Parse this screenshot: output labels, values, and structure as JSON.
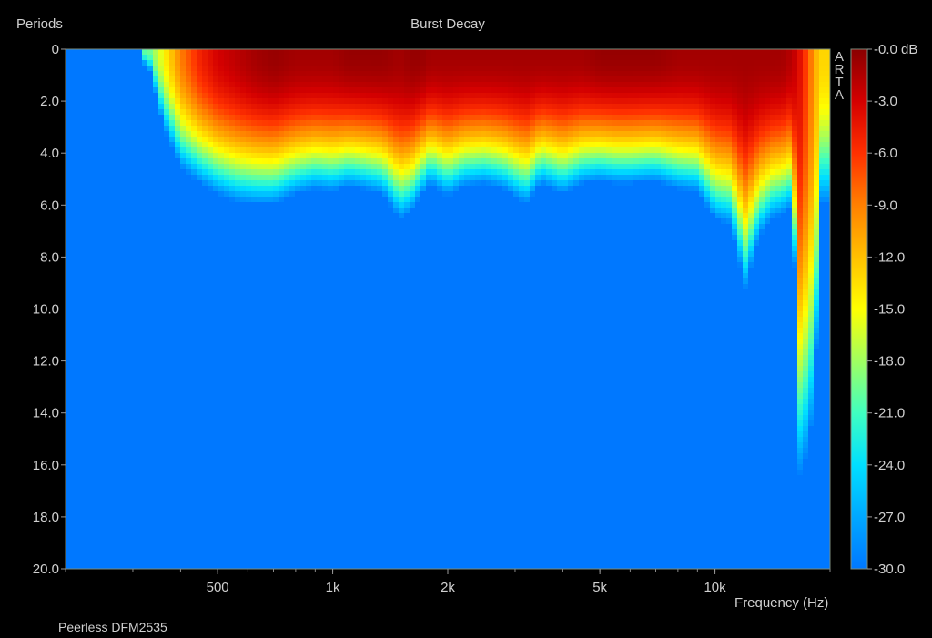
{
  "chart_data": {
    "type": "heatmap",
    "title": "Burst Decay",
    "ylabel": "Periods",
    "xlabel": "Frequency (Hz)",
    "x_scale": "log",
    "xlim": [
      200,
      20000
    ],
    "ylim": [
      0,
      20
    ],
    "y_direction": "down",
    "x_ticks": [
      {
        "value": 500,
        "label": "500"
      },
      {
        "value": 1000,
        "label": "1k"
      },
      {
        "value": 2000,
        "label": "2k"
      },
      {
        "value": 5000,
        "label": "5k"
      },
      {
        "value": 10000,
        "label": "10k"
      }
    ],
    "y_ticks": [
      {
        "value": 0,
        "label": "0"
      },
      {
        "value": 2,
        "label": "2.0"
      },
      {
        "value": 4,
        "label": "4.0"
      },
      {
        "value": 6,
        "label": "6.0"
      },
      {
        "value": 8,
        "label": "8.0"
      },
      {
        "value": 10,
        "label": "10.0"
      },
      {
        "value": 12,
        "label": "12.0"
      },
      {
        "value": 14,
        "label": "14.0"
      },
      {
        "value": 16,
        "label": "16.0"
      },
      {
        "value": 18,
        "label": "18.0"
      },
      {
        "value": 20,
        "label": "20.0"
      }
    ],
    "colorbar": {
      "unit": "dB",
      "range": [
        -30,
        0
      ],
      "labels": [
        "-0.0 dB",
        "-3.0",
        "-6.0",
        "-9.0",
        "-12.0",
        "-15.0",
        "-18.0",
        "-21.0",
        "-24.0",
        "-27.0",
        "-30.0"
      ],
      "colors": [
        "#8a0000",
        "#d40000",
        "#ff3000",
        "#ff8000",
        "#ffc000",
        "#ffff00",
        "#a0ff60",
        "#40ffc0",
        "#00e0ff",
        "#00a8ff",
        "#0078ff"
      ]
    },
    "decay_profile": {
      "frequencies_hz": [
        330,
        360,
        400,
        450,
        500,
        560,
        630,
        700,
        800,
        900,
        1000,
        1100,
        1200,
        1350,
        1500,
        1600,
        1700,
        1800,
        2000,
        2200,
        2500,
        2800,
        3200,
        3500,
        4000,
        4500,
        5000,
        5500,
        6000,
        7000,
        8000,
        9000,
        10000,
        11000,
        12000,
        13000,
        14000,
        15000,
        16000,
        16700,
        17200,
        17700,
        18200,
        19000
      ],
      "periods_to_minus30db": [
        0.6,
        3.0,
        4.6,
        5.2,
        5.6,
        5.9,
        6.0,
        6.0,
        5.6,
        5.4,
        5.5,
        5.3,
        5.4,
        5.6,
        6.6,
        6.3,
        5.7,
        5.2,
        5.7,
        5.3,
        5.2,
        5.4,
        6.0,
        5.2,
        5.6,
        5.2,
        5.1,
        5.2,
        5.2,
        5.1,
        5.4,
        5.5,
        6.6,
        6.8,
        9.3,
        7.3,
        6.6,
        6.4,
        6.1,
        16.6,
        16.0,
        15.0,
        14.0,
        6.0
      ],
      "peak_level_db": [
        -20,
        -15,
        -9,
        -5,
        -3,
        -2,
        -1,
        -0.5,
        -1,
        -1,
        -1,
        -0.5,
        -0.5,
        -0.5,
        -1,
        -0.5,
        -0.5,
        -1,
        -1,
        -1,
        -1,
        -1,
        -1,
        -1,
        -1,
        -1,
        -0.5,
        -0.5,
        -0.5,
        -0.5,
        -1,
        -1,
        -1,
        -1,
        -1,
        -1,
        -1,
        -1,
        -2,
        -4,
        -6,
        -8,
        -11,
        -13
      ]
    },
    "legend": "none",
    "grid": false
  },
  "footnote": "Peerless DFM2535",
  "brand_letters": [
    "A",
    "R",
    "T",
    "A"
  ]
}
